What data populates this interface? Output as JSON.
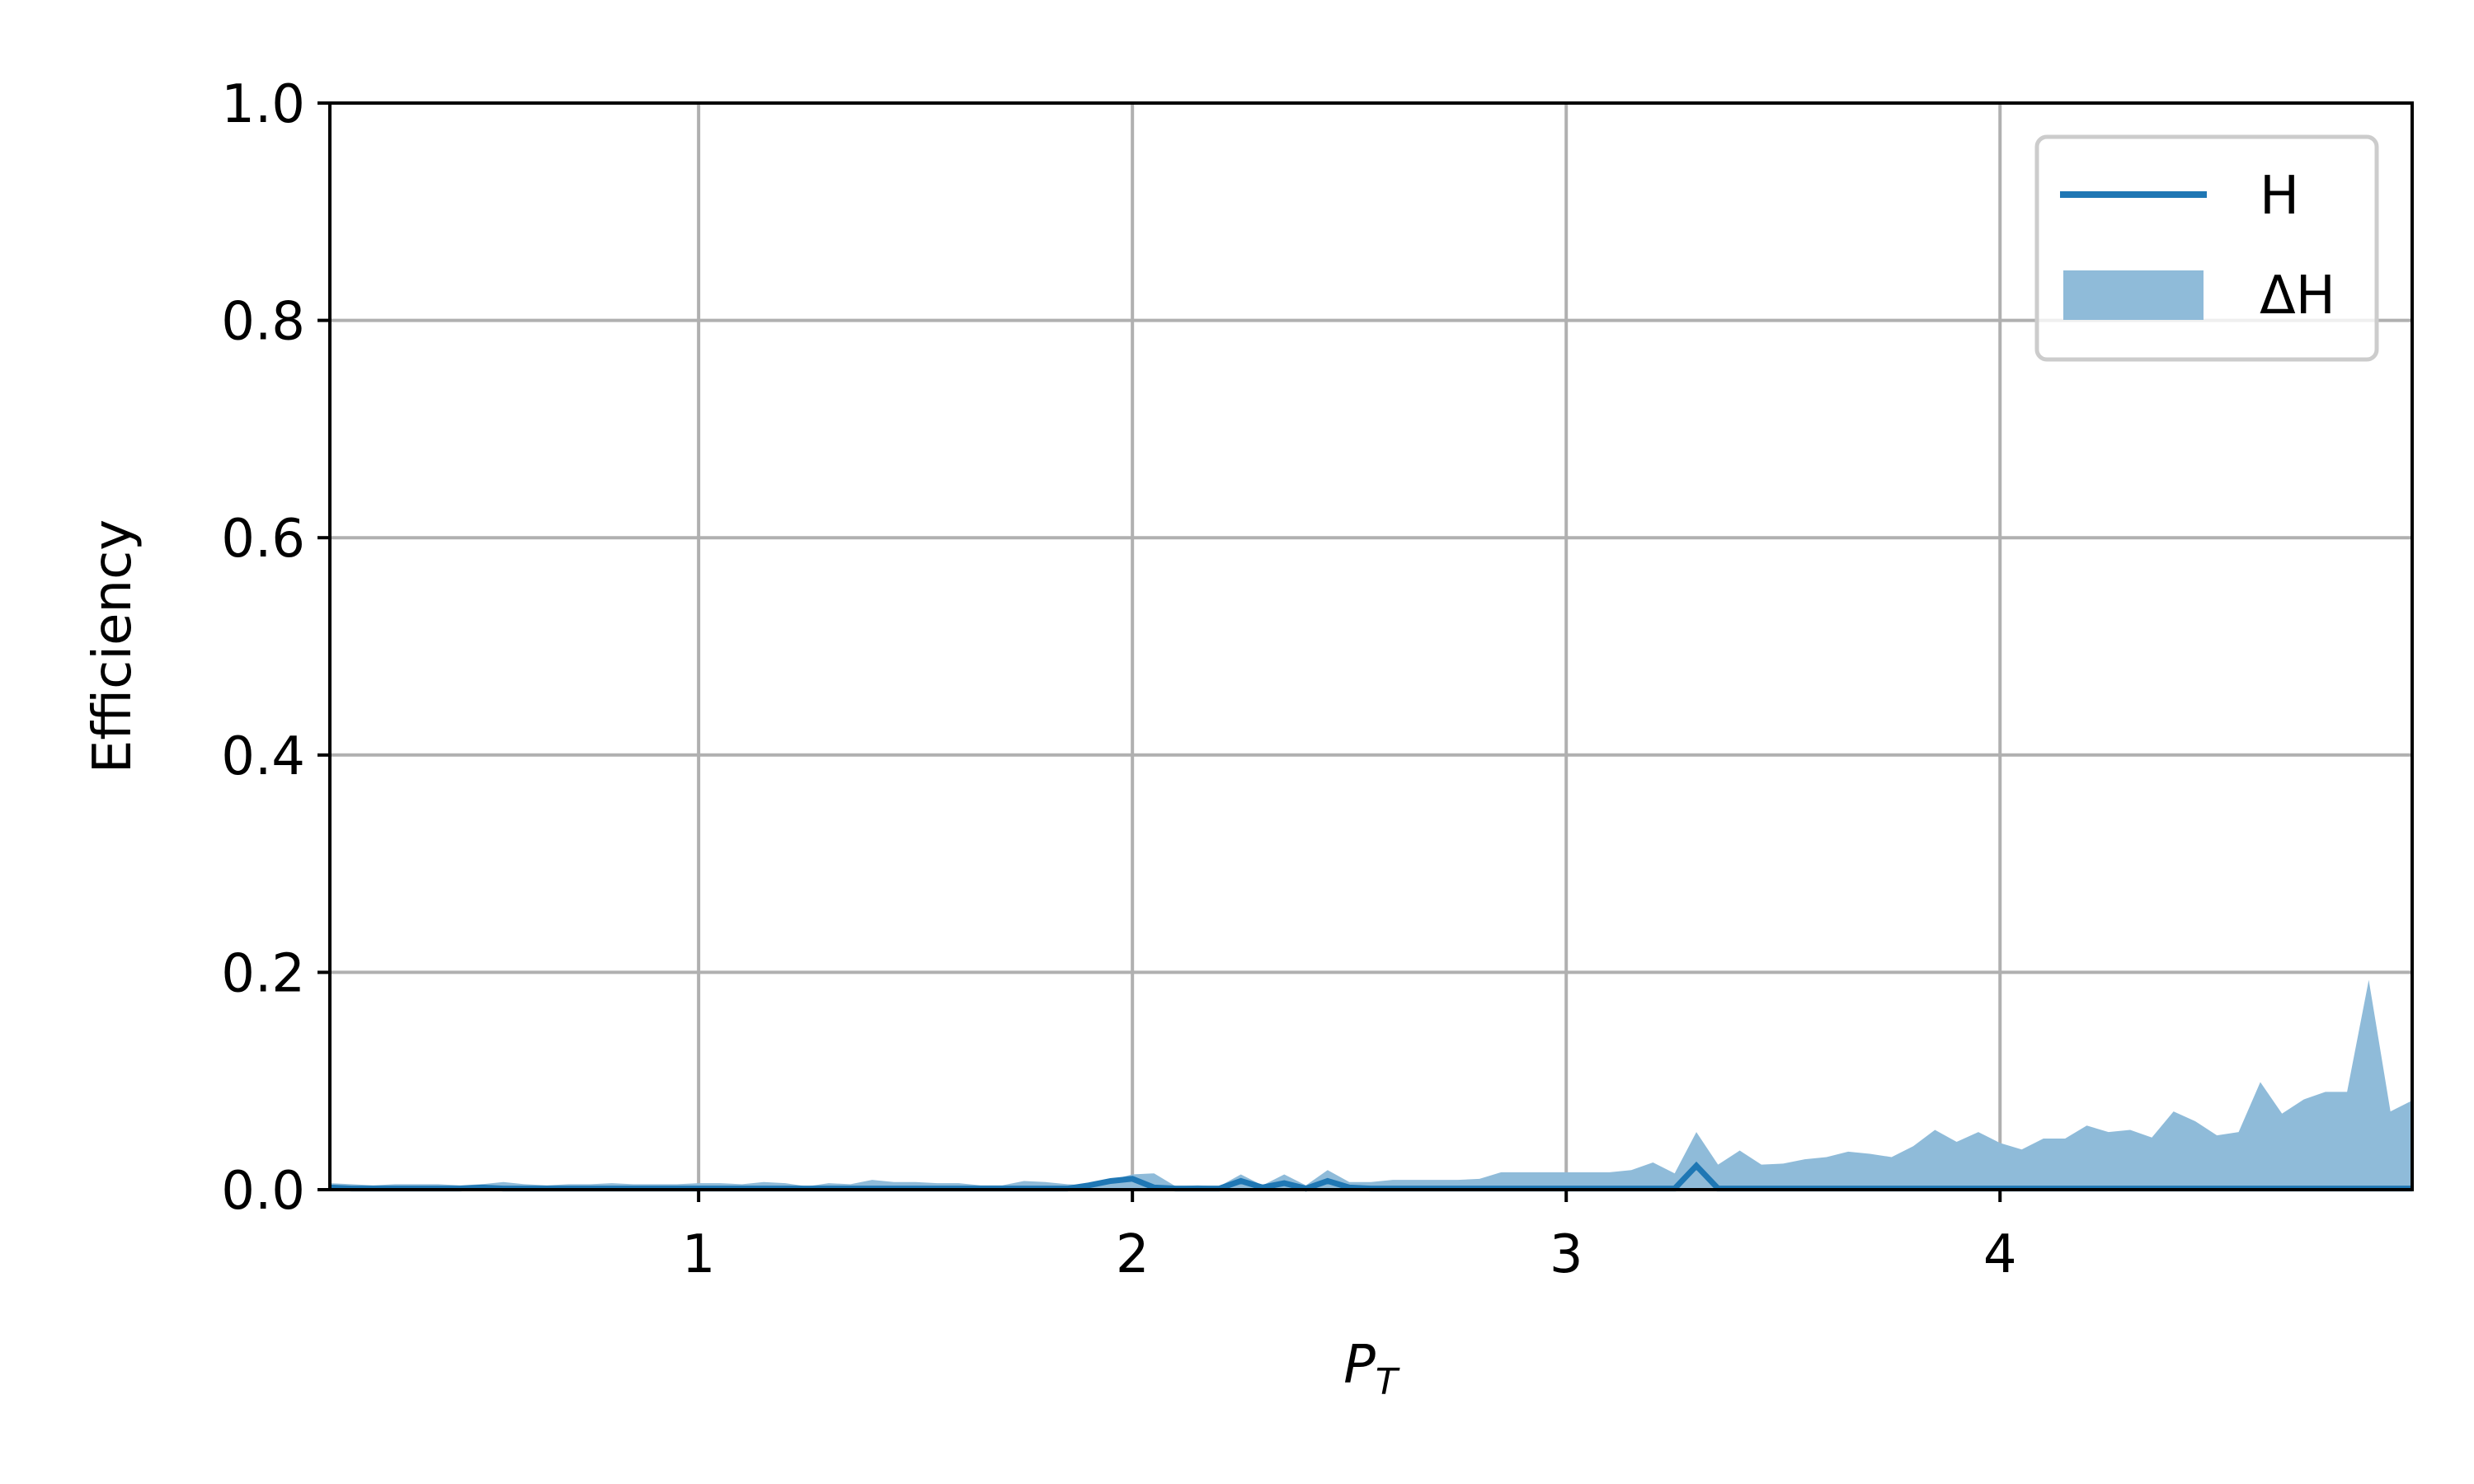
{
  "chart_data": {
    "type": "area",
    "title": "",
    "xlabel": "P",
    "xlabel_sub": "T",
    "ylabel": "Efficiency",
    "xlim": [
      0.15,
      4.95
    ],
    "ylim": [
      0.0,
      1.0
    ],
    "xticks": [
      1,
      2,
      3,
      4
    ],
    "yticks": [
      0.0,
      0.2,
      0.4,
      0.6,
      0.8,
      1.0
    ],
    "xtick_labels": [
      "1",
      "2",
      "3",
      "4"
    ],
    "ytick_labels": [
      "0.0",
      "0.2",
      "0.4",
      "0.6",
      "0.8",
      "1.0"
    ],
    "grid": true,
    "legend_position": "top-right",
    "x": [
      0.15,
      0.2,
      0.25,
      0.3,
      0.35,
      0.4,
      0.45,
      0.5,
      0.55,
      0.6,
      0.65,
      0.7,
      0.75,
      0.8,
      0.85,
      0.9,
      0.95,
      1.0,
      1.05,
      1.1,
      1.15,
      1.2,
      1.25,
      1.3,
      1.35,
      1.4,
      1.45,
      1.5,
      1.55,
      1.6,
      1.65,
      1.7,
      1.75,
      1.8,
      1.85,
      1.9,
      1.95,
      2.0,
      2.05,
      2.1,
      2.15,
      2.2,
      2.25,
      2.3,
      2.35,
      2.4,
      2.45,
      2.5,
      2.55,
      2.6,
      2.65,
      2.7,
      2.75,
      2.8,
      2.85,
      2.9,
      2.95,
      3.0,
      3.05,
      3.1,
      3.15,
      3.2,
      3.25,
      3.3,
      3.35,
      3.4,
      3.45,
      3.5,
      3.55,
      3.6,
      3.65,
      3.7,
      3.75,
      3.8,
      3.85,
      3.9,
      3.95,
      4.0,
      4.05,
      4.1,
      4.15,
      4.2,
      4.25,
      4.3,
      4.35,
      4.4,
      4.45,
      4.5,
      4.55,
      4.6,
      4.65,
      4.7,
      4.75,
      4.8,
      4.85,
      4.9,
      4.95
    ],
    "series": [
      {
        "name": "H",
        "style": "line",
        "color": "#1f77b4",
        "values": [
          0.002,
          0.001,
          0.001,
          0.001,
          0.001,
          0.001,
          0.001,
          0.002,
          0.001,
          0.001,
          0.001,
          0.001,
          0.001,
          0.001,
          0.001,
          0.001,
          0.001,
          0.001,
          0.001,
          0.001,
          0.001,
          0.001,
          0.001,
          0.001,
          0.001,
          0.001,
          0.001,
          0.001,
          0.001,
          0.001,
          0.001,
          0.001,
          0.001,
          0.001,
          0.001,
          0.004,
          0.008,
          0.01,
          0.002,
          0.001,
          0.001,
          0.001,
          0.008,
          0.002,
          0.006,
          0.001,
          0.008,
          0.002,
          0.001,
          0.001,
          0.001,
          0.001,
          0.001,
          0.001,
          0.001,
          0.001,
          0.001,
          0.001,
          0.001,
          0.001,
          0.001,
          0.001,
          0.001,
          0.022,
          0.001,
          0.001,
          0.001,
          0.001,
          0.001,
          0.001,
          0.001,
          0.001,
          0.001,
          0.001,
          0.001,
          0.001,
          0.001,
          0.001,
          0.001,
          0.001,
          0.001,
          0.001,
          0.001,
          0.001,
          0.001,
          0.001,
          0.001,
          0.001,
          0.001,
          0.001,
          0.001,
          0.001,
          0.001,
          0.001,
          0.001,
          0.001,
          0.001
        ]
      },
      {
        "name": "ΔH",
        "style": "fill",
        "color": "#8fbbd9",
        "values": [
          0.006,
          0.005,
          0.004,
          0.005,
          0.005,
          0.005,
          0.004,
          0.005,
          0.007,
          0.005,
          0.004,
          0.005,
          0.005,
          0.006,
          0.005,
          0.005,
          0.005,
          0.006,
          0.006,
          0.005,
          0.007,
          0.006,
          0.003,
          0.006,
          0.005,
          0.009,
          0.007,
          0.007,
          0.006,
          0.006,
          0.004,
          0.004,
          0.008,
          0.007,
          0.005,
          0.004,
          0.009,
          0.014,
          0.015,
          0.003,
          0.004,
          0.003,
          0.014,
          0.004,
          0.014,
          0.004,
          0.018,
          0.007,
          0.007,
          0.009,
          0.009,
          0.009,
          0.009,
          0.01,
          0.016,
          0.016,
          0.016,
          0.016,
          0.016,
          0.016,
          0.018,
          0.025,
          0.015,
          0.053,
          0.023,
          0.036,
          0.023,
          0.024,
          0.028,
          0.03,
          0.035,
          0.033,
          0.03,
          0.04,
          0.055,
          0.044,
          0.053,
          0.043,
          0.037,
          0.047,
          0.047,
          0.059,
          0.053,
          0.055,
          0.048,
          0.072,
          0.063,
          0.05,
          0.053,
          0.099,
          0.07,
          0.083,
          0.09,
          0.09,
          0.193,
          0.072,
          0.082
        ]
      }
    ]
  }
}
